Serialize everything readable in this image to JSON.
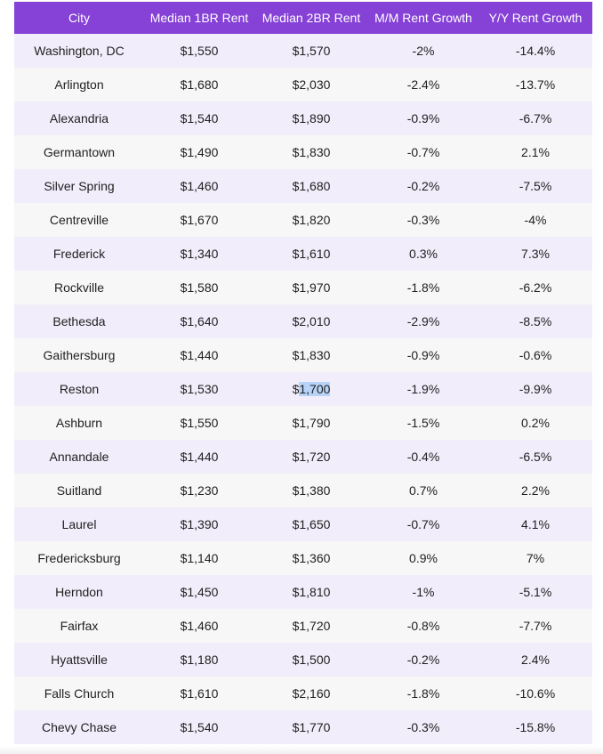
{
  "table": {
    "headers": [
      "City",
      "Median 1BR Rent",
      "Median 2BR Rent",
      "M/M Rent Growth",
      "Y/Y Rent Growth"
    ],
    "rows": [
      [
        "Washington, DC",
        "$1,550",
        "$1,570",
        "-2%",
        "-14.4%"
      ],
      [
        "Arlington",
        "$1,680",
        "$2,030",
        "-2.4%",
        "-13.7%"
      ],
      [
        "Alexandria",
        "$1,540",
        "$1,890",
        "-0.9%",
        "-6.7%"
      ],
      [
        "Germantown",
        "$1,490",
        "$1,830",
        "-0.7%",
        "2.1%"
      ],
      [
        "Silver Spring",
        "$1,460",
        "$1,680",
        "-0.2%",
        "-7.5%"
      ],
      [
        "Centreville",
        "$1,670",
        "$1,820",
        "-0.3%",
        "-4%"
      ],
      [
        "Frederick",
        "$1,340",
        "$1,610",
        "0.3%",
        "7.3%"
      ],
      [
        "Rockville",
        "$1,580",
        "$1,970",
        "-1.8%",
        "-6.2%"
      ],
      [
        "Bethesda",
        "$1,640",
        "$2,010",
        "-2.9%",
        "-8.5%"
      ],
      [
        "Gaithersburg",
        "$1,440",
        "$1,830",
        "-0.9%",
        "-0.6%"
      ],
      [
        "Reston",
        "$1,530",
        "$1,700",
        "-1.9%",
        "-9.9%"
      ],
      [
        "Ashburn",
        "$1,550",
        "$1,790",
        "-1.5%",
        "0.2%"
      ],
      [
        "Annandale",
        "$1,440",
        "$1,720",
        "-0.4%",
        "-6.5%"
      ],
      [
        "Suitland",
        "$1,230",
        "$1,380",
        "0.7%",
        "2.2%"
      ],
      [
        "Laurel",
        "$1,390",
        "$1,650",
        "-0.7%",
        "4.1%"
      ],
      [
        "Fredericksburg",
        "$1,140",
        "$1,360",
        "0.9%",
        "7%"
      ],
      [
        "Herndon",
        "$1,450",
        "$1,810",
        "-1%",
        "-5.1%"
      ],
      [
        "Fairfax",
        "$1,460",
        "$1,720",
        "-0.8%",
        "-7.7%"
      ],
      [
        "Hyattsville",
        "$1,180",
        "$1,500",
        "-0.2%",
        "2.4%"
      ],
      [
        "Falls Church",
        "$1,610",
        "$2,160",
        "-1.8%",
        "-10.6%"
      ],
      [
        "Chevy Chase",
        "$1,540",
        "$1,770",
        "-0.3%",
        "-15.8%"
      ]
    ],
    "selection": {
      "prefix": "$",
      "selected": "1,700"
    },
    "colors": {
      "header_bg": "#8641d6",
      "row_odd": "#f2edfb",
      "row_even": "#f7f7f7",
      "selection": "#b7d3f7"
    }
  }
}
